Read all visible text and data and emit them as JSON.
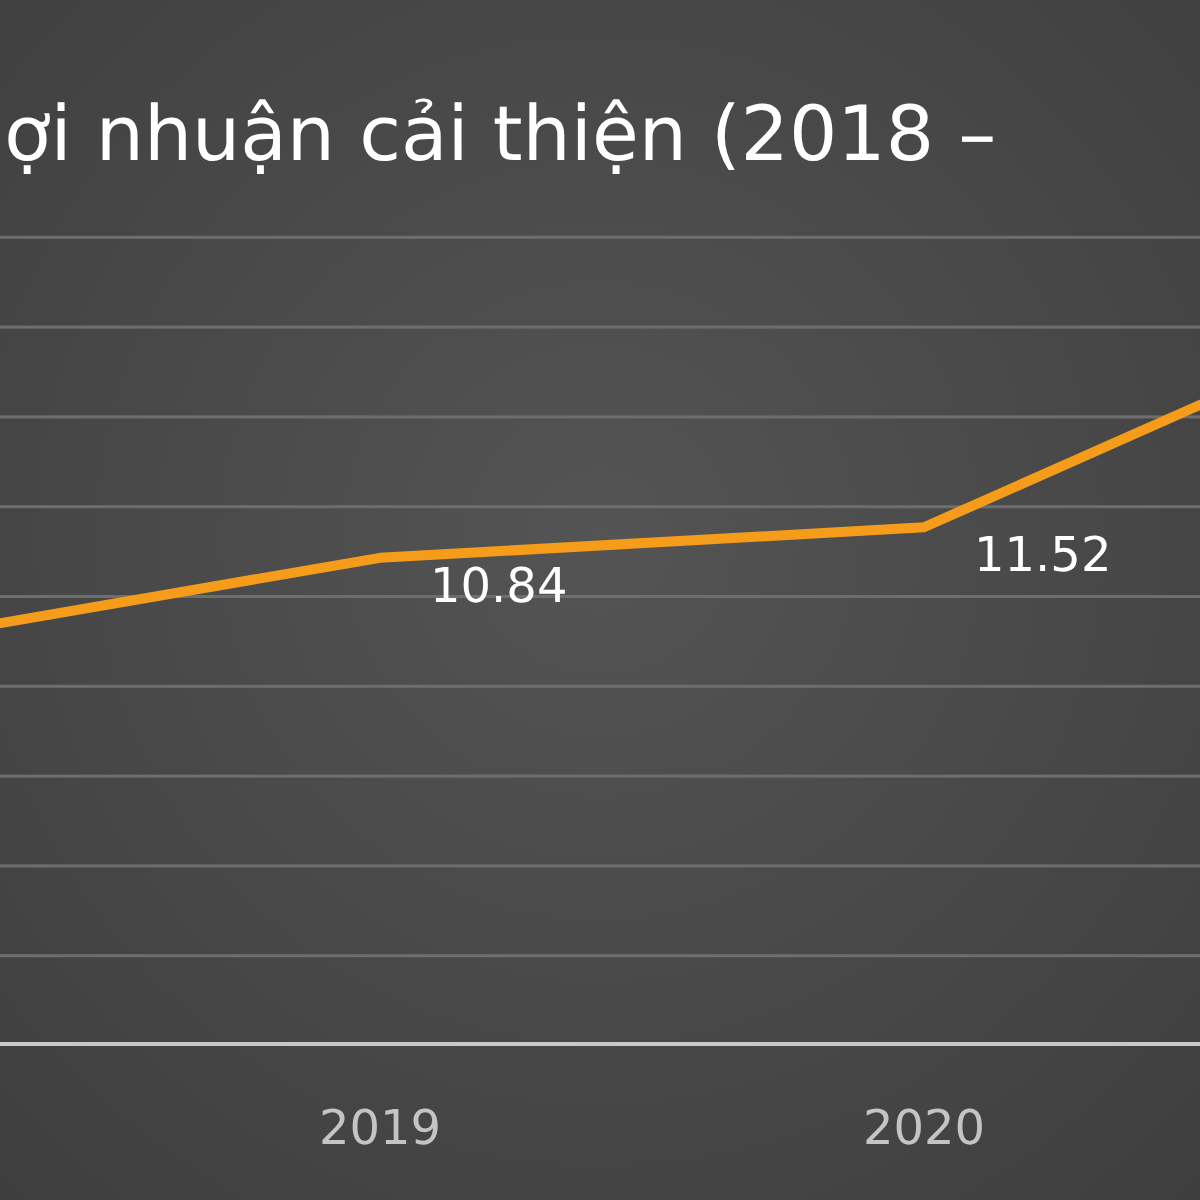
{
  "chart_data": {
    "type": "line",
    "title": "ợi nhuận cải thiện (2018 –",
    "categories": [
      null,
      "2019",
      "2020",
      null
    ],
    "series": [
      {
        "color": "#f59c1a",
        "values": [
          8.75,
          10.84,
          11.52,
          16.9
        ],
        "value_labels": [
          null,
          "10.84",
          "11.52",
          null
        ]
      }
    ],
    "tick_labels": "x",
    "marker": "none",
    "line_style": "solid"
  }
}
